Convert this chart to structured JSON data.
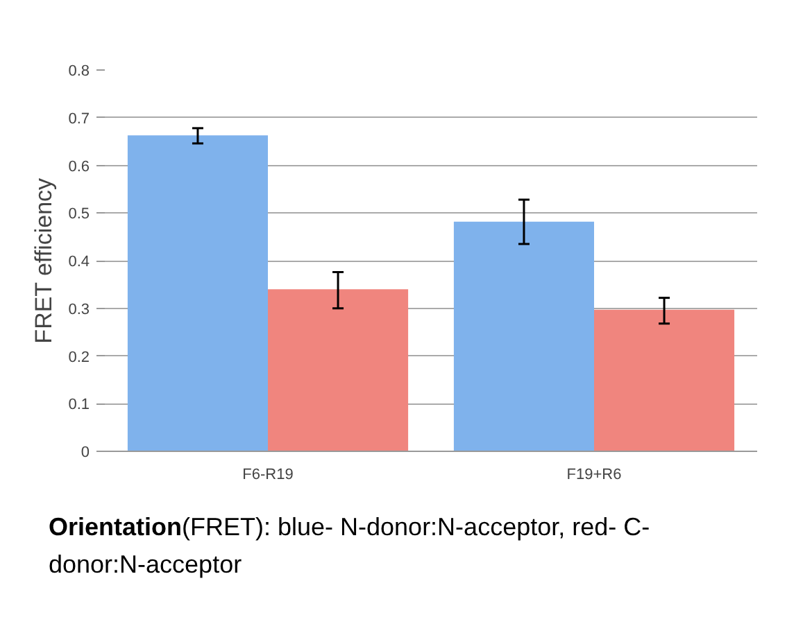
{
  "chart_data": {
    "type": "bar",
    "ylabel": "FRET efficiency",
    "categories": [
      "F6-R19",
      "F19+R6"
    ],
    "series": [
      {
        "color": "#7fb2ec",
        "values": [
          0.663,
          0.482
        ],
        "errors": [
          [
            0.646,
            0.678
          ],
          [
            0.435,
            0.528
          ]
        ]
      },
      {
        "color": "#f0857e",
        "values": [
          0.34,
          0.297
        ],
        "errors": [
          [
            0.3,
            0.376
          ],
          [
            0.268,
            0.322
          ]
        ]
      }
    ],
    "ylim": [
      0,
      0.8
    ],
    "yticks": [
      0,
      0.1,
      0.2,
      0.3,
      0.4,
      0.5,
      0.6,
      0.7,
      0.8
    ],
    "grid": "y",
    "annotations": [
      "Orientation(FRET): blue- N-donor:N-acceptor, red- C-donor:N-acceptor"
    ]
  }
}
